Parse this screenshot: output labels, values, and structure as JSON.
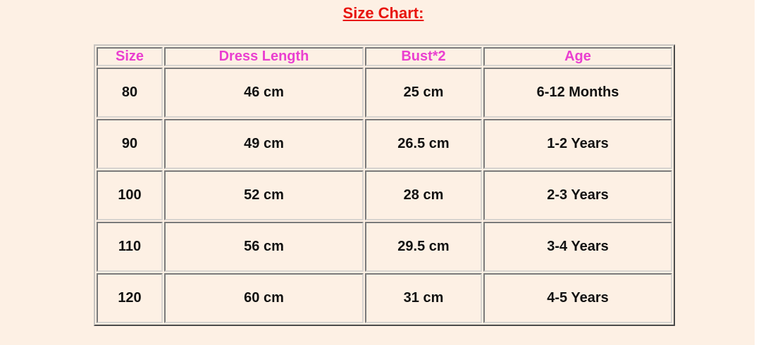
{
  "title": "Size Chart:",
  "colors": {
    "background": "#fdf0e4",
    "title": "#e8150e",
    "header_text": "#ea3fd0"
  },
  "table": {
    "headers": [
      "Size",
      "Dress Length",
      "Bust*2",
      "Age"
    ],
    "rows": [
      [
        "80",
        "46 cm",
        "25 cm",
        "6-12 Months"
      ],
      [
        "90",
        "49 cm",
        "26.5 cm",
        "1-2 Years"
      ],
      [
        "100",
        "52 cm",
        "28 cm",
        "2-3 Years"
      ],
      [
        "110",
        "56 cm",
        "29.5 cm",
        "3-4 Years"
      ],
      [
        "120",
        "60 cm",
        "31 cm",
        "4-5 Years"
      ]
    ]
  }
}
